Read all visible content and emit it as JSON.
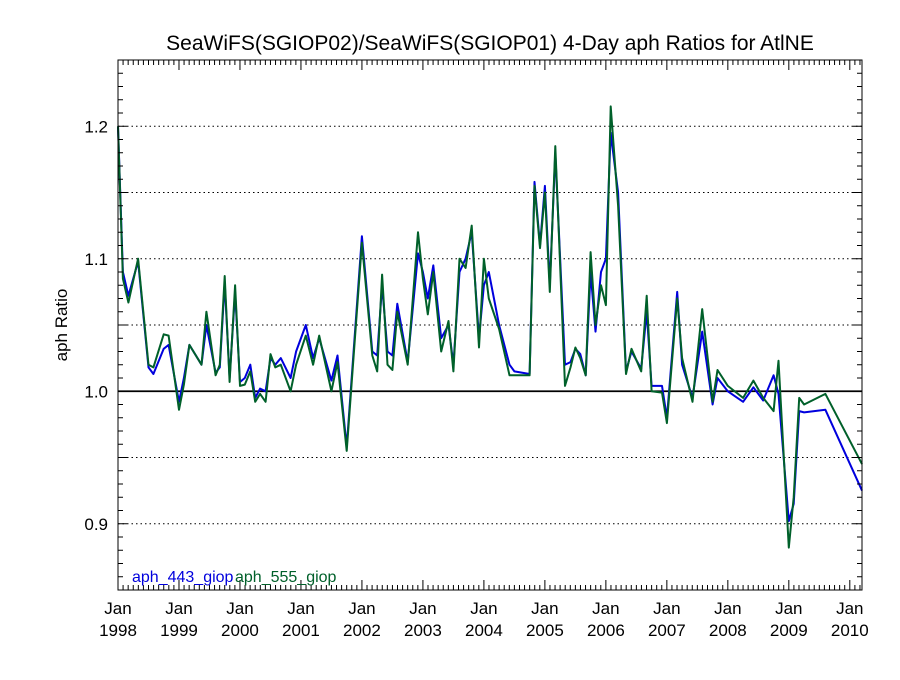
{
  "chart_data": {
    "type": "line",
    "title": "SeaWiFS(SGIOP02)/SeaWiFS(SGIOP01) 4-Day aph Ratios for AtlNE",
    "xlabel": "",
    "ylabel": "aph Ratio",
    "xlim": [
      1998.0,
      2010.2
    ],
    "ylim": [
      0.85,
      1.25
    ],
    "grid": true,
    "reference_line": 1.0,
    "legend_position": "bottom-left",
    "x_ticks": [
      {
        "value": 1998,
        "month": "Jan",
        "year": "1998"
      },
      {
        "value": 1999,
        "month": "Jan",
        "year": "1999"
      },
      {
        "value": 2000,
        "month": "Jan",
        "year": "2000"
      },
      {
        "value": 2001,
        "month": "Jan",
        "year": "2001"
      },
      {
        "value": 2002,
        "month": "Jan",
        "year": "2002"
      },
      {
        "value": 2003,
        "month": "Jan",
        "year": "2003"
      },
      {
        "value": 2004,
        "month": "Jan",
        "year": "2004"
      },
      {
        "value": 2005,
        "month": "Jan",
        "year": "2005"
      },
      {
        "value": 2006,
        "month": "Jan",
        "year": "2006"
      },
      {
        "value": 2007,
        "month": "Jan",
        "year": "2007"
      },
      {
        "value": 2008,
        "month": "Jan",
        "year": "2008"
      },
      {
        "value": 2009,
        "month": "Jan",
        "year": "2009"
      },
      {
        "value": 2010,
        "month": "Jan",
        "year": "2010"
      }
    ],
    "y_ticks": [
      {
        "value": 0.9,
        "label": "0.9"
      },
      {
        "value": 1.0,
        "label": "1.0"
      },
      {
        "value": 1.1,
        "label": "1.1"
      },
      {
        "value": 1.2,
        "label": "1.2"
      }
    ],
    "y_gridlines": [
      0.85,
      0.9,
      0.95,
      1.05,
      1.1,
      1.15,
      1.2
    ],
    "series": [
      {
        "name": "aph_443_giop",
        "color": "#0000dd",
        "points": [
          [
            1998.0,
            1.2
          ],
          [
            1998.08,
            1.09
          ],
          [
            1998.17,
            1.072
          ],
          [
            1998.33,
            1.098
          ],
          [
            1998.5,
            1.018
          ],
          [
            1998.58,
            1.013
          ],
          [
            1998.75,
            1.032
          ],
          [
            1998.83,
            1.035
          ],
          [
            1999.0,
            0.992
          ],
          [
            1999.08,
            1.01
          ],
          [
            1999.17,
            1.035
          ],
          [
            1999.37,
            1.02
          ],
          [
            1999.45,
            1.05
          ],
          [
            1999.6,
            1.014
          ],
          [
            1999.67,
            1.018
          ],
          [
            1999.75,
            1.082
          ],
          [
            1999.83,
            1.01
          ],
          [
            1999.92,
            1.075
          ],
          [
            2000.0,
            1.007
          ],
          [
            2000.08,
            1.01
          ],
          [
            2000.17,
            1.02
          ],
          [
            2000.25,
            0.995
          ],
          [
            2000.33,
            1.002
          ],
          [
            2000.42,
            1.0
          ],
          [
            2000.5,
            1.025
          ],
          [
            2000.58,
            1.02
          ],
          [
            2000.67,
            1.025
          ],
          [
            2000.83,
            1.01
          ],
          [
            2000.92,
            1.03
          ],
          [
            2001.08,
            1.05
          ],
          [
            2001.2,
            1.025
          ],
          [
            2001.3,
            1.04
          ],
          [
            2001.5,
            1.008
          ],
          [
            2001.6,
            1.027
          ],
          [
            2001.75,
            0.958
          ],
          [
            2002.0,
            1.117
          ],
          [
            2002.17,
            1.03
          ],
          [
            2002.25,
            1.027
          ],
          [
            2002.33,
            1.08
          ],
          [
            2002.42,
            1.03
          ],
          [
            2002.5,
            1.027
          ],
          [
            2002.58,
            1.066
          ],
          [
            2002.75,
            1.022
          ],
          [
            2002.92,
            1.104
          ],
          [
            2003.0,
            1.09
          ],
          [
            2003.08,
            1.07
          ],
          [
            2003.17,
            1.095
          ],
          [
            2003.3,
            1.04
          ],
          [
            2003.42,
            1.05
          ],
          [
            2003.5,
            1.02
          ],
          [
            2003.6,
            1.09
          ],
          [
            2003.7,
            1.1
          ],
          [
            2003.8,
            1.12
          ],
          [
            2003.92,
            1.04
          ],
          [
            2004.0,
            1.08
          ],
          [
            2004.08,
            1.09
          ],
          [
            2004.25,
            1.05
          ],
          [
            2004.42,
            1.02
          ],
          [
            2004.5,
            1.015
          ],
          [
            2004.75,
            1.013
          ],
          [
            2004.83,
            1.158
          ],
          [
            2004.92,
            1.11
          ],
          [
            2005.0,
            1.155
          ],
          [
            2005.08,
            1.08
          ],
          [
            2005.17,
            1.18
          ],
          [
            2005.33,
            1.02
          ],
          [
            2005.42,
            1.022
          ],
          [
            2005.5,
            1.032
          ],
          [
            2005.58,
            1.028
          ],
          [
            2005.67,
            1.012
          ],
          [
            2005.75,
            1.09
          ],
          [
            2005.83,
            1.045
          ],
          [
            2005.92,
            1.09
          ],
          [
            2006.0,
            1.1
          ],
          [
            2006.08,
            1.195
          ],
          [
            2006.2,
            1.15
          ],
          [
            2006.33,
            1.015
          ],
          [
            2006.42,
            1.03
          ],
          [
            2006.58,
            1.017
          ],
          [
            2006.67,
            1.06
          ],
          [
            2006.75,
            1.004
          ],
          [
            2006.92,
            1.004
          ],
          [
            2007.0,
            0.98
          ],
          [
            2007.17,
            1.075
          ],
          [
            2007.25,
            1.02
          ],
          [
            2007.42,
            0.995
          ],
          [
            2007.58,
            1.045
          ],
          [
            2007.75,
            0.99
          ],
          [
            2007.83,
            1.01
          ],
          [
            2008.0,
            1.0
          ],
          [
            2008.25,
            0.992
          ],
          [
            2008.42,
            1.003
          ],
          [
            2008.58,
            0.993
          ],
          [
            2008.75,
            1.012
          ],
          [
            2008.83,
            0.998
          ],
          [
            2009.0,
            0.902
          ],
          [
            2009.08,
            0.915
          ],
          [
            2009.17,
            0.985
          ],
          [
            2009.25,
            0.984
          ],
          [
            2009.6,
            0.986
          ],
          [
            2010.2,
            0.925
          ]
        ]
      },
      {
        "name": "aph_555_giop",
        "color": "#00602a",
        "points": [
          [
            1998.0,
            1.2
          ],
          [
            1998.08,
            1.085
          ],
          [
            1998.17,
            1.067
          ],
          [
            1998.33,
            1.1
          ],
          [
            1998.5,
            1.02
          ],
          [
            1998.58,
            1.018
          ],
          [
            1998.75,
            1.043
          ],
          [
            1998.83,
            1.042
          ],
          [
            1999.0,
            0.986
          ],
          [
            1999.08,
            1.005
          ],
          [
            1999.17,
            1.035
          ],
          [
            1999.37,
            1.02
          ],
          [
            1999.45,
            1.06
          ],
          [
            1999.6,
            1.012
          ],
          [
            1999.67,
            1.02
          ],
          [
            1999.75,
            1.087
          ],
          [
            1999.83,
            1.007
          ],
          [
            1999.92,
            1.08
          ],
          [
            2000.0,
            1.004
          ],
          [
            2000.08,
            1.005
          ],
          [
            2000.17,
            1.015
          ],
          [
            2000.25,
            0.992
          ],
          [
            2000.33,
            0.998
          ],
          [
            2000.42,
            0.992
          ],
          [
            2000.5,
            1.028
          ],
          [
            2000.58,
            1.018
          ],
          [
            2000.67,
            1.02
          ],
          [
            2000.83,
            1.0
          ],
          [
            2000.92,
            1.02
          ],
          [
            2001.08,
            1.042
          ],
          [
            2001.2,
            1.02
          ],
          [
            2001.3,
            1.042
          ],
          [
            2001.5,
            1.0
          ],
          [
            2001.6,
            1.022
          ],
          [
            2001.75,
            0.955
          ],
          [
            2002.0,
            1.112
          ],
          [
            2002.17,
            1.027
          ],
          [
            2002.25,
            1.015
          ],
          [
            2002.33,
            1.088
          ],
          [
            2002.42,
            1.02
          ],
          [
            2002.5,
            1.016
          ],
          [
            2002.58,
            1.06
          ],
          [
            2002.75,
            1.02
          ],
          [
            2002.92,
            1.12
          ],
          [
            2003.0,
            1.085
          ],
          [
            2003.08,
            1.058
          ],
          [
            2003.17,
            1.09
          ],
          [
            2003.3,
            1.03
          ],
          [
            2003.42,
            1.053
          ],
          [
            2003.5,
            1.015
          ],
          [
            2003.6,
            1.1
          ],
          [
            2003.7,
            1.093
          ],
          [
            2003.8,
            1.125
          ],
          [
            2003.92,
            1.033
          ],
          [
            2004.0,
            1.1
          ],
          [
            2004.08,
            1.07
          ],
          [
            2004.25,
            1.047
          ],
          [
            2004.42,
            1.012
          ],
          [
            2004.5,
            1.012
          ],
          [
            2004.75,
            1.012
          ],
          [
            2004.83,
            1.155
          ],
          [
            2004.92,
            1.108
          ],
          [
            2005.0,
            1.15
          ],
          [
            2005.08,
            1.075
          ],
          [
            2005.17,
            1.185
          ],
          [
            2005.33,
            1.004
          ],
          [
            2005.42,
            1.018
          ],
          [
            2005.5,
            1.033
          ],
          [
            2005.58,
            1.025
          ],
          [
            2005.67,
            1.012
          ],
          [
            2005.75,
            1.105
          ],
          [
            2005.83,
            1.05
          ],
          [
            2005.92,
            1.08
          ],
          [
            2006.0,
            1.065
          ],
          [
            2006.08,
            1.215
          ],
          [
            2006.2,
            1.14
          ],
          [
            2006.33,
            1.013
          ],
          [
            2006.42,
            1.032
          ],
          [
            2006.58,
            1.015
          ],
          [
            2006.67,
            1.072
          ],
          [
            2006.75,
            1.0
          ],
          [
            2006.92,
            0.999
          ],
          [
            2007.0,
            0.976
          ],
          [
            2007.17,
            1.07
          ],
          [
            2007.25,
            1.025
          ],
          [
            2007.42,
            0.992
          ],
          [
            2007.58,
            1.062
          ],
          [
            2007.75,
            0.992
          ],
          [
            2007.83,
            1.016
          ],
          [
            2008.0,
            1.004
          ],
          [
            2008.25,
            0.995
          ],
          [
            2008.42,
            1.008
          ],
          [
            2008.58,
            0.995
          ],
          [
            2008.75,
            0.985
          ],
          [
            2008.83,
            1.023
          ],
          [
            2009.0,
            0.882
          ],
          [
            2009.08,
            0.92
          ],
          [
            2009.17,
            0.995
          ],
          [
            2009.25,
            0.99
          ],
          [
            2009.6,
            0.998
          ],
          [
            2010.2,
            0.945
          ]
        ]
      }
    ]
  }
}
